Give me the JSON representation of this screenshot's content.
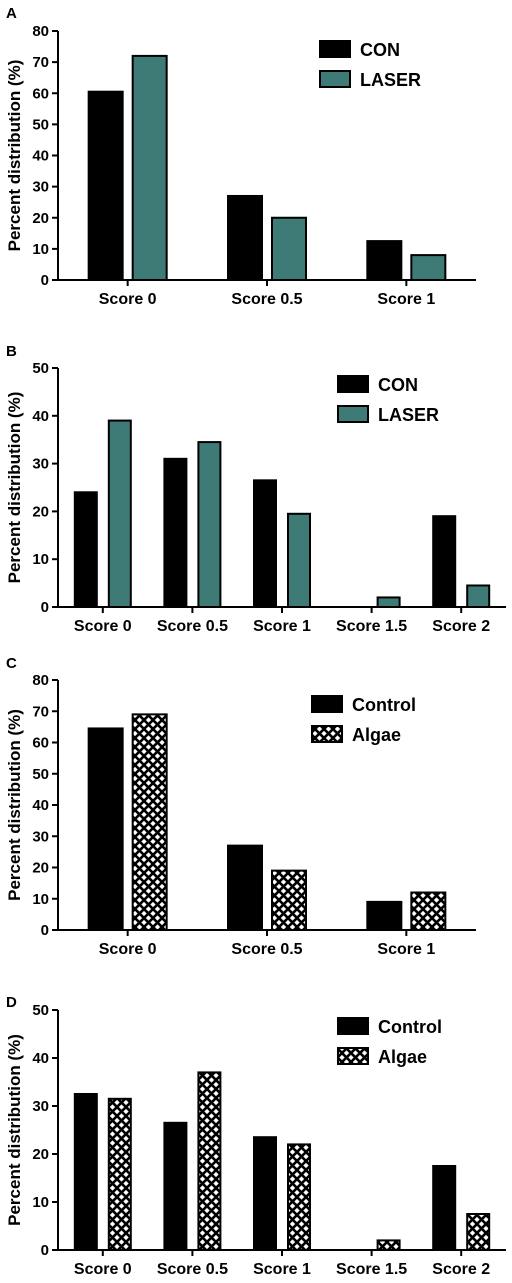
{
  "chart_data": [
    {
      "panel": "A",
      "type": "bar",
      "ylabel": "Percent distribution (%)",
      "ylim": [
        0,
        80
      ],
      "yticks": [
        0,
        10,
        20,
        30,
        40,
        50,
        60,
        70,
        80
      ],
      "categories": [
        "Score 0",
        "Score 0.5",
        "Score 1"
      ],
      "series": [
        {
          "name": "CON",
          "values": [
            60.5,
            27,
            12.5
          ],
          "fill": "solid",
          "color": "#000000"
        },
        {
          "name": "LASER",
          "values": [
            72,
            20,
            8
          ],
          "fill": "solid",
          "color": "#3e7a76"
        }
      ],
      "legend": "top-right",
      "grid": false
    },
    {
      "panel": "B",
      "type": "bar",
      "ylabel": "Percent distribution (%)",
      "ylim": [
        0,
        50
      ],
      "yticks": [
        0,
        10,
        20,
        30,
        40,
        50
      ],
      "categories": [
        "Score 0",
        "Score 0.5",
        "Score 1",
        "Score 1.5",
        "Score 2"
      ],
      "series": [
        {
          "name": "CON",
          "values": [
            24,
            31,
            26.5,
            0,
            19
          ],
          "fill": "solid",
          "color": "#000000"
        },
        {
          "name": "LASER",
          "values": [
            39,
            34.5,
            19.5,
            2,
            4.5
          ],
          "fill": "solid",
          "color": "#3e7a76"
        }
      ],
      "legend": "top-right",
      "grid": false
    },
    {
      "panel": "C",
      "type": "bar",
      "ylabel": "Percent distribution (%)",
      "ylim": [
        0,
        80
      ],
      "yticks": [
        0,
        10,
        20,
        30,
        40,
        50,
        60,
        70,
        80
      ],
      "categories": [
        "Score 0",
        "Score 0.5",
        "Score 1"
      ],
      "series": [
        {
          "name": "Control",
          "values": [
            64.5,
            27,
            9
          ],
          "fill": "solid",
          "color": "#000000"
        },
        {
          "name": "Algae",
          "values": [
            69,
            19,
            12
          ],
          "fill": "crosshatch",
          "color": "#000000"
        }
      ],
      "legend": "top-right",
      "grid": false
    },
    {
      "panel": "D",
      "type": "bar",
      "ylabel": "Percent distribution (%)",
      "ylim": [
        0,
        50
      ],
      "yticks": [
        0,
        10,
        20,
        30,
        40,
        50
      ],
      "categories": [
        "Score 0",
        "Score 0.5",
        "Score 1",
        "Score 1.5",
        "Score 2"
      ],
      "series": [
        {
          "name": "Control",
          "values": [
            32.5,
            26.5,
            23.5,
            0,
            17.5
          ],
          "fill": "solid",
          "color": "#000000"
        },
        {
          "name": "Algae",
          "values": [
            31.5,
            37,
            22,
            2,
            7.5
          ],
          "fill": "crosshatch",
          "color": "#000000"
        }
      ],
      "legend": "top-right",
      "grid": false
    }
  ]
}
